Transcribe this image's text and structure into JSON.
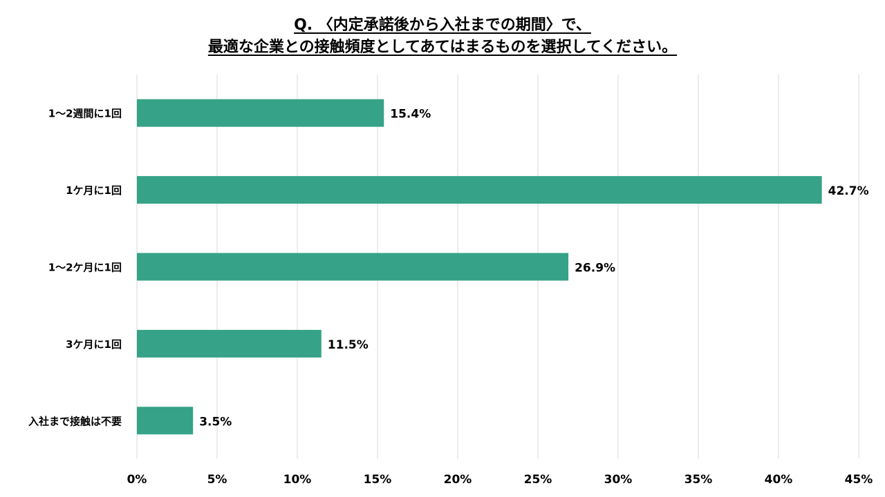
{
  "chart_data": {
    "type": "bar",
    "orientation": "horizontal",
    "title_lines": [
      "Q. 〈内定承諾後から入社までの期間〉で、",
      "最適な企業との接触頻度としてあてはまるものを選択してください。"
    ],
    "categories": [
      "1～2週間に1回",
      "1ケ月に1回",
      "1～2ケ月に1回",
      "3ケ月に1回",
      "入社まで接触は不要"
    ],
    "values": [
      15.4,
      42.7,
      26.9,
      11.5,
      3.5
    ],
    "value_labels": [
      "15.4%",
      "42.7%",
      "26.9%",
      "11.5%",
      "3.5%"
    ],
    "x_ticks": [
      "0%",
      "5%",
      "10%",
      "15%",
      "20%",
      "25%",
      "30%",
      "35%",
      "40%",
      "45%"
    ],
    "xlim": [
      0,
      45
    ],
    "grid": "vertical",
    "legend": "none",
    "bar_color": "#36a287",
    "grid_color": "#d9d9d9"
  }
}
